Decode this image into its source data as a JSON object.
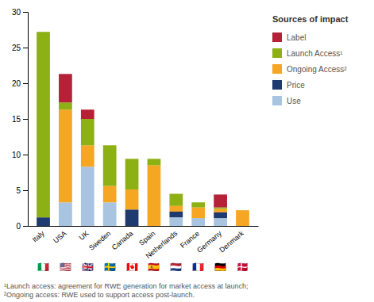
{
  "chart_data": {
    "type": "bar",
    "stacked": true,
    "categories": [
      "Italy",
      "USA",
      "UK",
      "Sweden",
      "Canada",
      "Spain",
      "Netherlands",
      "France",
      "Germany",
      "Denmark"
    ],
    "series": [
      {
        "name": "Use",
        "color": "#a8c4e0",
        "values": [
          0,
          3.3,
          8.3,
          3.3,
          0,
          0,
          1.2,
          1.1,
          1.1,
          0
        ]
      },
      {
        "name": "Price",
        "color": "#1e3a6e",
        "values": [
          1.2,
          0,
          0,
          0,
          2.3,
          0,
          0.8,
          0,
          0.8,
          0
        ]
      },
      {
        "name": "Ongoing Access²",
        "color": "#f5a623",
        "values": [
          0,
          13.0,
          3.0,
          2.3,
          2.8,
          8.5,
          0.8,
          1.5,
          0.5,
          2.2
        ]
      },
      {
        "name": "Launch Access¹",
        "color": "#8db014",
        "values": [
          26.0,
          1.0,
          3.7,
          5.7,
          4.3,
          0.9,
          1.7,
          0.7,
          0.2,
          0
        ]
      },
      {
        "name": "Label",
        "color": "#b52237",
        "values": [
          0,
          4.0,
          1.3,
          0,
          0,
          0,
          0,
          0,
          1.8,
          0
        ]
      }
    ],
    "legend": "right",
    "legend_title": "Sources of impact",
    "ylim": [
      0,
      30
    ],
    "yticks": [
      0,
      5,
      10,
      15,
      20,
      25,
      30
    ],
    "grid": false,
    "flags": [
      "🇮🇹",
      "🇺🇸",
      "🇬🇧",
      "🇸🇪",
      "🇨🇦",
      "🇪🇸",
      "🇳🇱",
      "🇫🇷",
      "🇩🇪",
      "🇩🇰"
    ],
    "annotations": [
      "¹Launch access: agreement for RWE generation for market access at launch;",
      "²Ongoing access: RWE used to support access post-launch."
    ]
  }
}
